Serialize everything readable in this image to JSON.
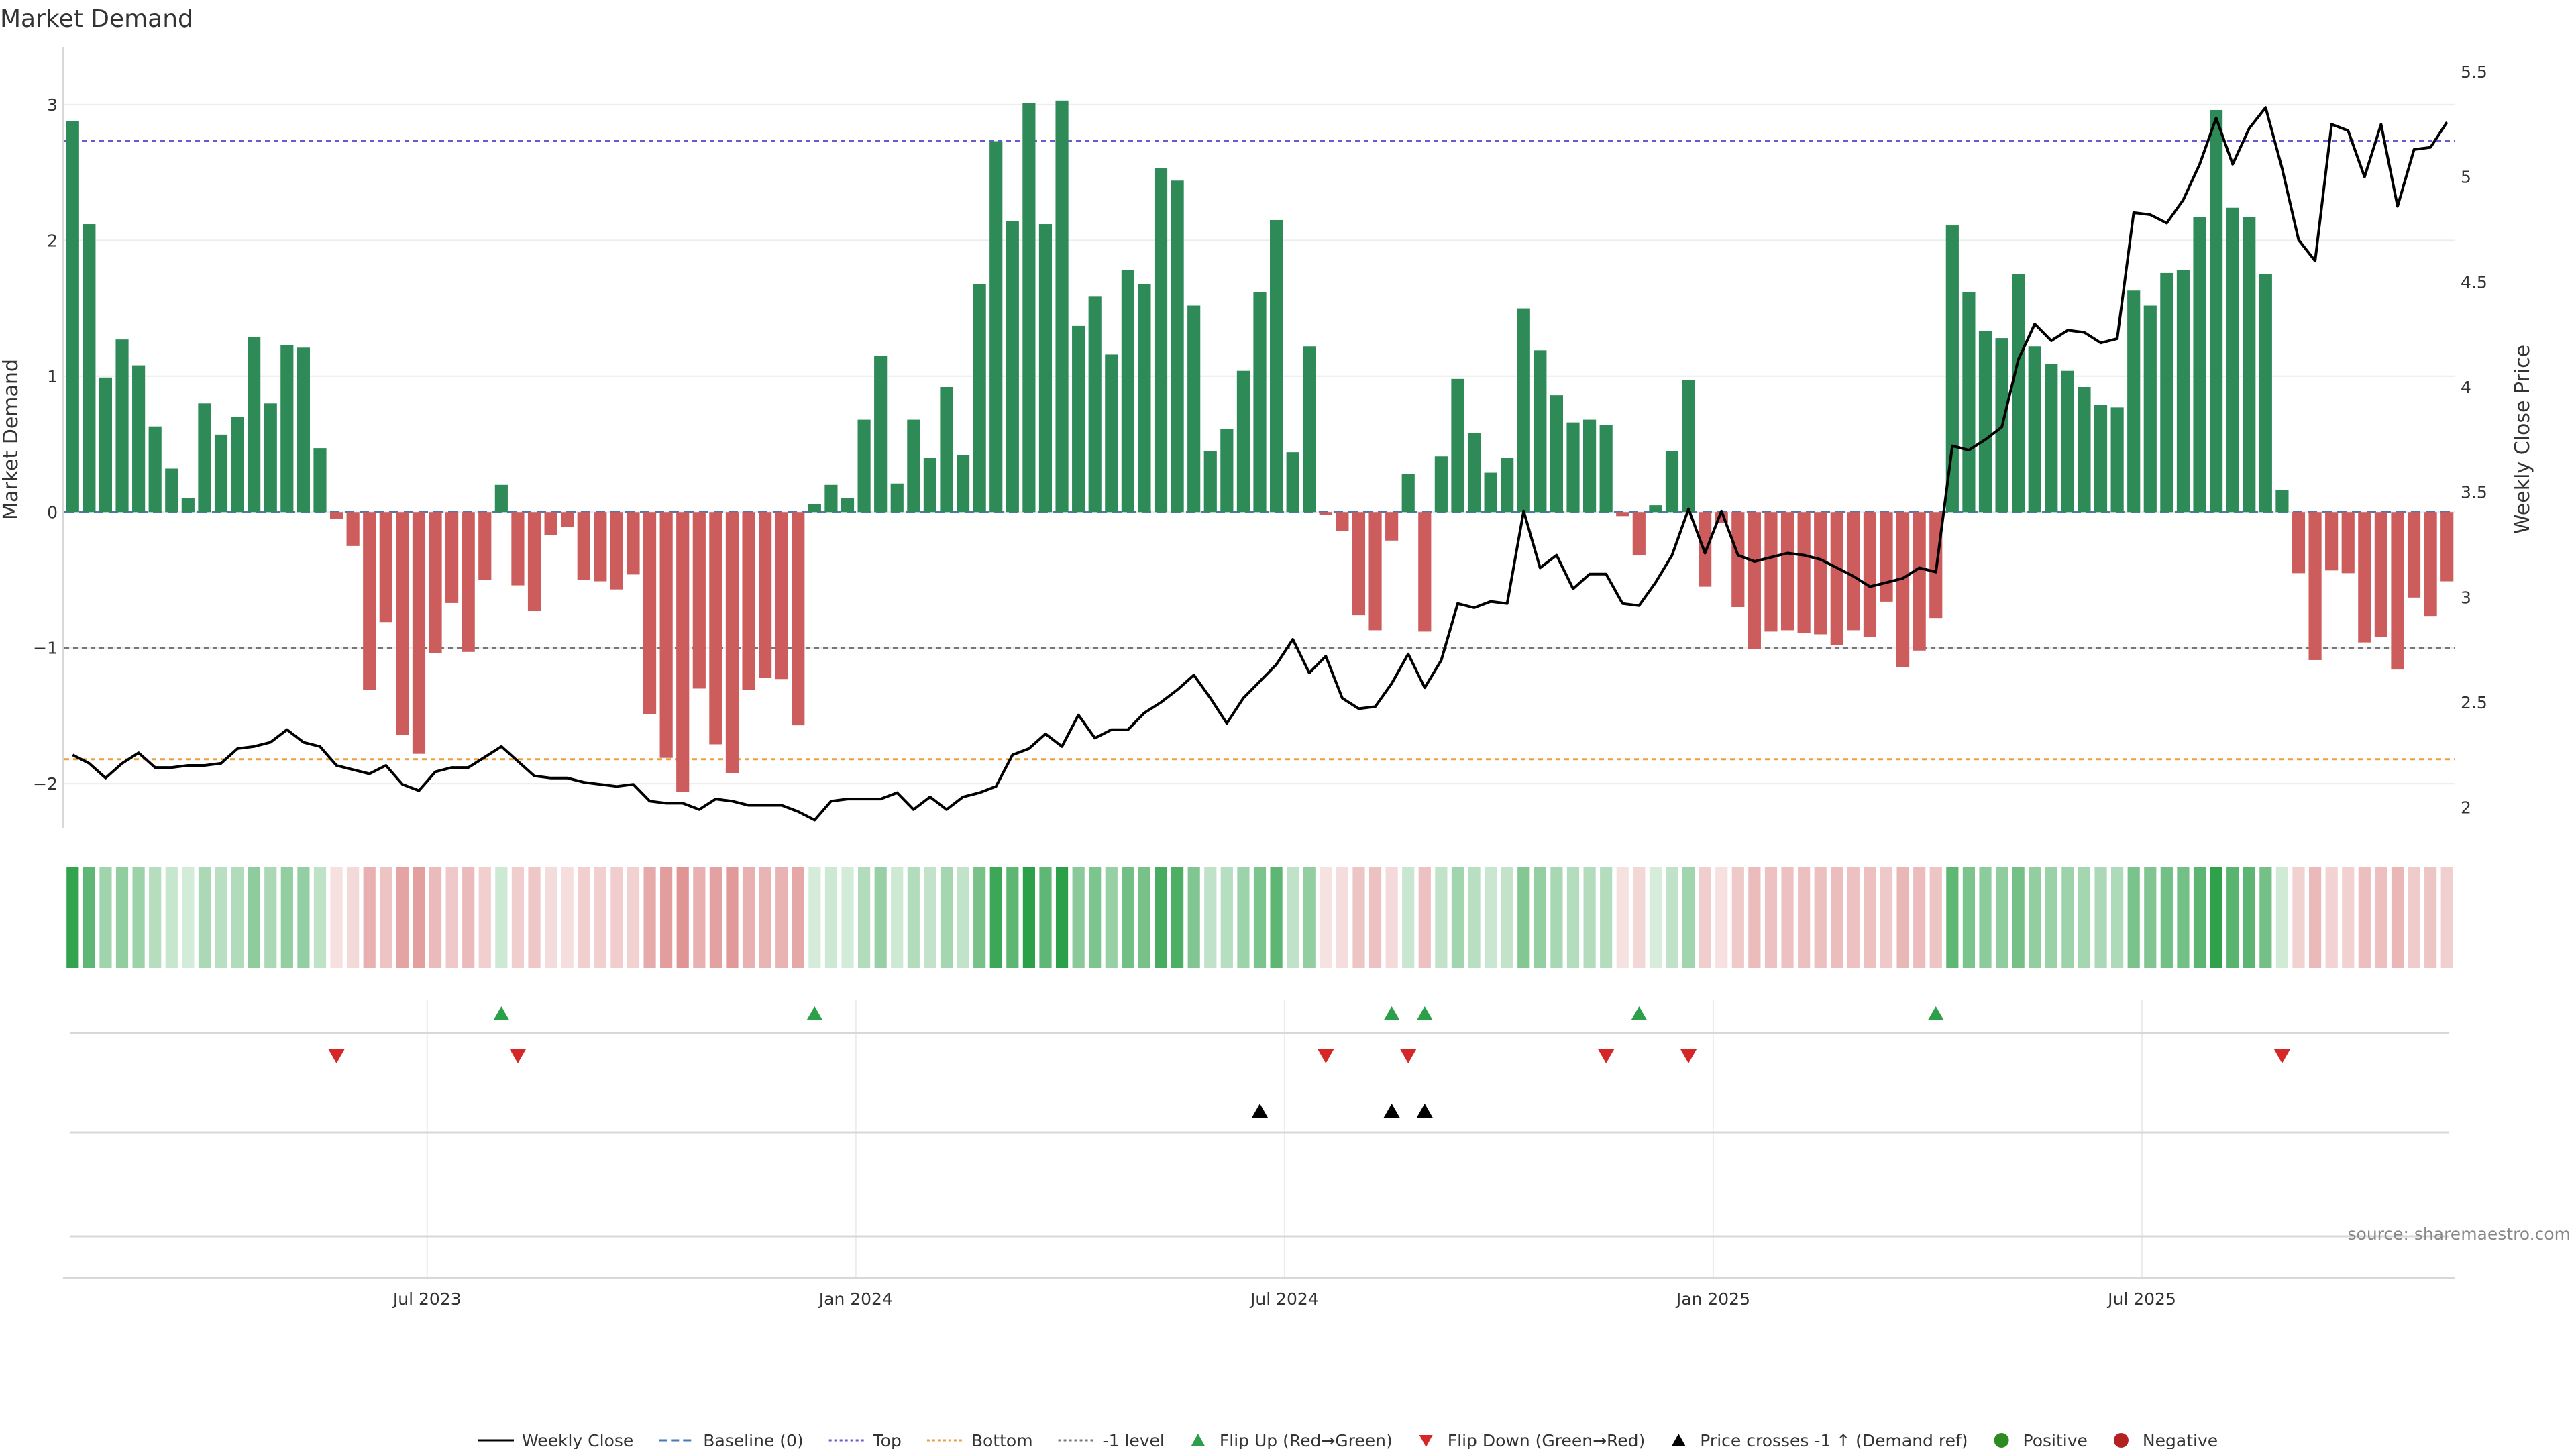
{
  "chart_data": {
    "type": "bar",
    "title": "Market Demand",
    "ylabel_left": "Market Demand",
    "ylabel_right": "Weekly Close Price",
    "source": "source: sharemaestro.com",
    "ylim_left": [
      -2.33,
      3.35
    ],
    "ylim_right": [
      1.9,
      5.57
    ],
    "left_ticks": [
      {
        "v": 3,
        "label": "3"
      },
      {
        "v": 2,
        "label": "2"
      },
      {
        "v": 1,
        "label": "1"
      },
      {
        "v": 0,
        "label": "0"
      },
      {
        "v": -1,
        "label": "−1"
      },
      {
        "v": -2,
        "label": "−2"
      }
    ],
    "right_ticks": [
      {
        "v": 5.5,
        "label": "5.5"
      },
      {
        "v": 5,
        "label": "5"
      },
      {
        "v": 4.5,
        "label": "4.5"
      },
      {
        "v": 4,
        "label": "4"
      },
      {
        "v": 3.5,
        "label": "3.5"
      },
      {
        "v": 3,
        "label": "3"
      },
      {
        "v": 2.5,
        "label": "2.5"
      },
      {
        "v": 2,
        "label": "2"
      }
    ],
    "x_ticks": [
      {
        "index": 22,
        "label": "Jul 2023"
      },
      {
        "index": 48,
        "label": "Jan 2024"
      },
      {
        "index": 74,
        "label": "Jul 2024"
      },
      {
        "index": 100,
        "label": "Jan 2025"
      },
      {
        "index": 126,
        "label": "Jul 2025"
      }
    ],
    "reference_lines": [
      {
        "name": "Top",
        "value": 2.73,
        "color": "#6a5acd"
      },
      {
        "name": "Bottom",
        "value": -1.82,
        "color": "#e8a040"
      },
      {
        "name": "-1 level",
        "value": -1.0,
        "color": "#777777"
      }
    ],
    "colors": {
      "positive": "#2e8b57",
      "negative": "#cd5c5c",
      "price": "#000000",
      "flip_up": "#2ca048",
      "flip_down": "#d62728",
      "cross": "#000000"
    },
    "demand": [
      2.88,
      2.12,
      0.99,
      1.27,
      1.08,
      0.63,
      0.32,
      0.1,
      0.8,
      0.57,
      0.7,
      1.29,
      0.8,
      1.23,
      1.21,
      0.47,
      -0.05,
      -0.25,
      -1.31,
      -0.81,
      -1.64,
      -1.78,
      -1.04,
      -0.67,
      -1.03,
      -0.5,
      0.2,
      -0.54,
      -0.73,
      -0.17,
      -0.11,
      -0.5,
      -0.51,
      -0.57,
      -0.46,
      -1.49,
      -1.81,
      -2.06,
      -1.3,
      -1.71,
      -1.92,
      -1.31,
      -1.22,
      -1.23,
      -1.57,
      0.06,
      0.2,
      0.1,
      0.68,
      1.15,
      0.21,
      0.68,
      0.4,
      0.92,
      0.42,
      1.68,
      2.73,
      2.14,
      3.01,
      2.12,
      3.03,
      1.37,
      1.59,
      1.16,
      1.78,
      1.68,
      2.53,
      2.44,
      1.52,
      0.45,
      0.61,
      1.04,
      1.62,
      2.15,
      0.44,
      1.22,
      -0.02,
      -0.14,
      -0.76,
      -0.87,
      -0.21,
      0.28,
      -0.88,
      0.41,
      0.98,
      0.58,
      0.29,
      0.4,
      1.5,
      1.19,
      0.86,
      0.66,
      0.68,
      0.64,
      -0.03,
      -0.32,
      0.05,
      0.45,
      0.97,
      -0.55,
      -0.08,
      -0.7,
      -1.01,
      -0.88,
      -0.87,
      -0.89,
      -0.9,
      -0.98,
      -0.87,
      -0.92,
      -0.66,
      -1.14,
      -1.02,
      -0.78,
      2.11,
      1.62,
      1.33,
      1.28,
      1.75,
      1.22,
      1.09,
      1.04,
      0.92,
      0.79,
      0.77,
      1.63,
      1.52,
      1.76,
      1.78,
      2.17,
      2.96,
      2.24,
      2.17,
      1.75,
      0.16,
      -0.45,
      -1.09,
      -0.43,
      -0.45,
      -0.96,
      -0.92,
      -1.16,
      -0.63,
      -0.77,
      -0.51
    ],
    "price": [
      2.25,
      2.21,
      2.14,
      2.21,
      2.26,
      2.19,
      2.19,
      2.2,
      2.2,
      2.21,
      2.28,
      2.29,
      2.31,
      2.37,
      2.31,
      2.29,
      2.2,
      2.18,
      2.16,
      2.2,
      2.11,
      2.08,
      2.17,
      2.19,
      2.19,
      2.24,
      2.29,
      2.22,
      2.15,
      2.14,
      2.14,
      2.12,
      2.11,
      2.1,
      2.11,
      2.03,
      2.02,
      2.02,
      1.99,
      2.04,
      2.03,
      2.01,
      2.01,
      2.01,
      1.98,
      1.94,
      2.03,
      2.04,
      2.04,
      2.04,
      2.07,
      1.99,
      2.05,
      1.99,
      2.05,
      2.07,
      2.1,
      2.25,
      2.28,
      2.35,
      2.29,
      2.44,
      2.33,
      2.37,
      2.37,
      2.45,
      2.5,
      2.56,
      2.63,
      2.52,
      2.4,
      2.52,
      2.6,
      2.68,
      2.8,
      2.64,
      2.72,
      2.52,
      2.47,
      2.48,
      2.59,
      2.73,
      2.57,
      2.7,
      2.97,
      2.95,
      2.98,
      2.97,
      3.41,
      3.14,
      3.2,
      3.04,
      3.11,
      3.11,
      2.97,
      2.96,
      3.07,
      3.2,
      3.42,
      3.21,
      3.41,
      3.2,
      3.17,
      3.19,
      3.21,
      3.2,
      3.18,
      3.14,
      3.1,
      3.05,
      3.07,
      3.09,
      3.14,
      3.12,
      3.72,
      3.7,
      3.75,
      3.81,
      4.13,
      4.3,
      4.22,
      4.27,
      4.26,
      4.21,
      4.23,
      4.83,
      4.82,
      4.78,
      4.89,
      5.06,
      5.28,
      5.06,
      5.23,
      5.33,
      5.04,
      4.7,
      4.6,
      5.25,
      5.22,
      5.0,
      5.25,
      4.86,
      5.13,
      5.14,
      5.26
    ],
    "flip_up": [
      26,
      45,
      80,
      82,
      95,
      113
    ],
    "flip_down": [
      16,
      27,
      76,
      81,
      93,
      98,
      134
    ],
    "price_cross": [
      72,
      80,
      82
    ],
    "legend": [
      {
        "label": "Weekly Close",
        "kind": "line",
        "color": "#000000"
      },
      {
        "label": "Baseline (0)",
        "kind": "dash",
        "color": "#4a78b8"
      },
      {
        "label": "Top",
        "kind": "dot",
        "color": "#6a5acd"
      },
      {
        "label": "Bottom",
        "kind": "dot",
        "color": "#e8a040"
      },
      {
        "label": "-1 level",
        "kind": "dot",
        "color": "#777777"
      },
      {
        "label": "Flip Up (Red→Green)",
        "kind": "tri-up",
        "color": "#2ca048"
      },
      {
        "label": "Flip Down (Green→Red)",
        "kind": "tri-down",
        "color": "#d62728"
      },
      {
        "label": "Price crosses -1 ↑ (Demand ref)",
        "kind": "tri-up",
        "color": "#000000"
      },
      {
        "label": "Positive",
        "kind": "circle",
        "color": "#2e8b22"
      },
      {
        "label": "Negative",
        "kind": "circle",
        "color": "#b22222"
      }
    ]
  }
}
